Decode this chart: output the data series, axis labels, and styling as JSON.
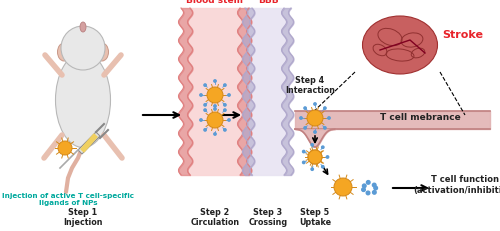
{
  "bg_color": "#ffffff",
  "blood_stem_label": "Blood stem",
  "bbb_label": "BBB",
  "stroke_label": "Stroke",
  "injection_text": "Injection of active T cell-specific\nligands of NPs",
  "step1_label": "Step 1\nInjection",
  "step2_label": "Step 2\nCirculation",
  "step3_label": "Step 3\nCrossing",
  "step5_label": "Step 5\nUptake",
  "step4_label": "Step 4\nInteraction",
  "tcell_membrane_label": "T cell mebrance",
  "tcell_function_label": "T cell function\n(activation/inhibition)",
  "red_label_color": "#e8232a",
  "teal_color": "#00a99d",
  "vessel_color_blood": "#e08080",
  "vessel_fill_blood": "#f9d5d5",
  "vessel_color_bbb": "#b0a8cc",
  "vessel_fill_bbb": "#e8e4f2",
  "np_orange": "#f5a623",
  "np_outline": "#d4891a",
  "np_blue_dot": "#5b9bd5",
  "tcell_color": "#d4a0a0",
  "step_label_color": "#222222"
}
